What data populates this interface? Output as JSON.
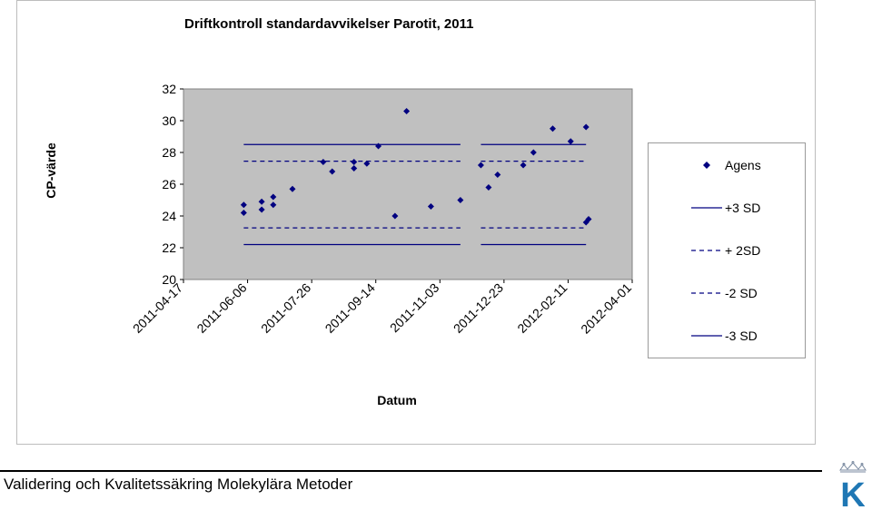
{
  "chart_data": {
    "type": "scatter",
    "title": "Driftkontroll standardavvikelser Parotit, 2011",
    "xlabel": "Datum",
    "ylabel": "CP-värde",
    "ylim": [
      20,
      32
    ],
    "yticks": [
      20,
      22,
      24,
      26,
      28,
      30,
      32
    ],
    "xlim": [
      "2011-04-17",
      "2012-04-01"
    ],
    "xtick_labels": [
      "2011-04-17",
      "2011-06-06",
      "2011-07-26",
      "2011-09-14",
      "2011-11-03",
      "2011-12-23",
      "2012-02-11",
      "2012-04-01"
    ],
    "grid": false,
    "plot_background": "#c0c0c0",
    "legend_position": "right",
    "series": [
      {
        "name": "Agens",
        "kind": "points",
        "color": "#000080",
        "points": [
          {
            "x": "2011-06-03",
            "y": 24.7
          },
          {
            "x": "2011-06-03",
            "y": 24.2
          },
          {
            "x": "2011-06-17",
            "y": 24.9
          },
          {
            "x": "2011-06-17",
            "y": 24.4
          },
          {
            "x": "2011-06-26",
            "y": 25.2
          },
          {
            "x": "2011-06-26",
            "y": 24.7
          },
          {
            "x": "2011-07-11",
            "y": 25.7
          },
          {
            "x": "2011-08-04",
            "y": 27.4
          },
          {
            "x": "2011-08-11",
            "y": 26.8
          },
          {
            "x": "2011-08-28",
            "y": 27.4
          },
          {
            "x": "2011-08-28",
            "y": 27.0
          },
          {
            "x": "2011-09-07",
            "y": 27.3
          },
          {
            "x": "2011-09-16",
            "y": 28.4
          },
          {
            "x": "2011-09-29",
            "y": 24.0
          },
          {
            "x": "2011-10-08",
            "y": 30.6
          },
          {
            "x": "2011-10-27",
            "y": 24.6
          },
          {
            "x": "2011-11-19",
            "y": 25.0
          },
          {
            "x": "2011-12-05",
            "y": 27.2
          },
          {
            "x": "2011-12-11",
            "y": 25.8
          },
          {
            "x": "2011-12-18",
            "y": 26.6
          },
          {
            "x": "2012-01-07",
            "y": 27.2
          },
          {
            "x": "2012-01-15",
            "y": 28.0
          },
          {
            "x": "2012-01-30",
            "y": 29.5
          },
          {
            "x": "2012-02-13",
            "y": 28.7
          },
          {
            "x": "2012-02-25",
            "y": 29.6
          },
          {
            "x": "2012-02-25",
            "y": 23.6
          },
          {
            "x": "2012-02-27",
            "y": 23.8
          }
        ]
      },
      {
        "name": "+3 SD",
        "kind": "solid",
        "color": "#000080",
        "segments": [
          {
            "x1": "2011-06-03",
            "x2": "2011-11-19",
            "y": 28.5
          },
          {
            "x1": "2011-12-05",
            "x2": "2012-02-25",
            "y": 28.5
          }
        ]
      },
      {
        "name": "+ 2SD",
        "kind": "dashed",
        "color": "#000080",
        "segments": [
          {
            "x1": "2011-06-03",
            "x2": "2011-11-19",
            "y": 27.45
          },
          {
            "x1": "2011-12-05",
            "x2": "2012-02-25",
            "y": 27.45
          }
        ]
      },
      {
        "name": "-2 SD",
        "kind": "dashed",
        "color": "#000080",
        "segments": [
          {
            "x1": "2011-06-03",
            "x2": "2011-11-19",
            "y": 23.25
          },
          {
            "x1": "2011-12-05",
            "x2": "2012-02-25",
            "y": 23.25
          }
        ]
      },
      {
        "name": "-3 SD",
        "kind": "solid",
        "color": "#000080",
        "segments": [
          {
            "x1": "2011-06-03",
            "x2": "2011-11-19",
            "y": 22.2
          },
          {
            "x1": "2011-12-05",
            "x2": "2012-02-25",
            "y": 22.2
          }
        ]
      }
    ]
  },
  "footer": {
    "text": "Validering och Kvalitetssäkring Molekylära Metoder"
  },
  "logo": {
    "icon": "crown-k-logo-icon",
    "letter": "K",
    "color": "#1f77b4"
  }
}
